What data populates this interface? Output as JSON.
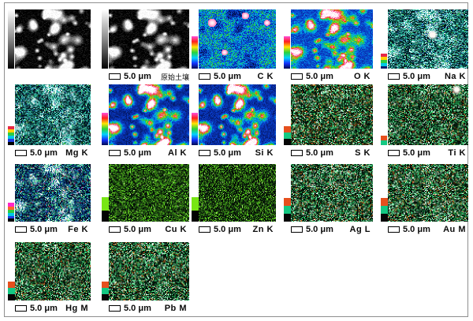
{
  "figure": {
    "background": "#ffffff",
    "border_color": "#8f8f8f",
    "scale_text": "5.0 μm",
    "panels": [
      {
        "label": "",
        "caption_visible": false,
        "mode": "sem",
        "colorbar": "gray"
      },
      {
        "label": "原始土壤",
        "label_cn": true,
        "caption_visible": true,
        "mode": "sem",
        "colorbar": "gray"
      },
      {
        "label": "C K",
        "caption_visible": true,
        "mode": "rainbow",
        "colorbar": "rainbow",
        "a": 0.4,
        "b": -0.22,
        "j": 0.18,
        "hotspots": [
          [
            0.17,
            0.22,
            0.07
          ],
          [
            0.6,
            0.1,
            0.06
          ],
          [
            0.88,
            0.22,
            0.05
          ],
          [
            0.33,
            0.72,
            0.05
          ]
        ]
      },
      {
        "label": "O K",
        "caption_visible": true,
        "mode": "rainbow",
        "colorbar": "rainbow",
        "a": 0.28,
        "b": 0.72,
        "j": 0.1
      },
      {
        "label": "Na K",
        "caption_visible": true,
        "mode": "speckle",
        "palette": "teal",
        "colorbar": "mini_na",
        "a": 0.25,
        "b": 0.45,
        "j": 0.5,
        "spots": [
          [
            0.55,
            0.42,
            0.09
          ]
        ]
      },
      {
        "label": "Mg K",
        "caption_visible": true,
        "mode": "speckle",
        "palette": "teal",
        "colorbar": "mini_mg",
        "a": 0.2,
        "b": 0.5,
        "j": 0.5
      },
      {
        "label": "Al K",
        "caption_visible": true,
        "mode": "rainbow",
        "colorbar": "rainbow",
        "a": 0.16,
        "b": 0.9,
        "j": 0.1
      },
      {
        "label": "Si K",
        "caption_visible": true,
        "mode": "rainbow",
        "colorbar": "rainbow",
        "a": 0.18,
        "b": 0.86,
        "j": 0.1
      },
      {
        "label": "S K",
        "caption_visible": true,
        "mode": "speckle",
        "palette": "green_orange",
        "colorbar": "ogb8",
        "a": 0.1,
        "b": 0.25,
        "j": 0.8,
        "dots": [
          [
            "#c85a14",
            0.05
          ],
          [
            "#7a3c0a",
            0.04
          ],
          [
            "#ffffff",
            0.03
          ],
          [
            "#e6a050",
            0.02
          ]
        ]
      },
      {
        "label": "Ti K",
        "caption_visible": true,
        "mode": "speckle",
        "palette": "green_orange",
        "colorbar": "ti",
        "a": 0.1,
        "b": 0.25,
        "j": 0.8,
        "spots": [
          [
            0.85,
            0.08,
            0.08
          ]
        ],
        "dots": [
          [
            "#c85a14",
            0.04
          ],
          [
            "#ffffff",
            0.03
          ],
          [
            "#e6a050",
            0.02
          ]
        ]
      },
      {
        "label": "Fe K",
        "caption_visible": true,
        "mode": "speckle",
        "palette": "fe",
        "colorbar": "mini_fe",
        "a": 0.12,
        "b": 0.6,
        "j": 0.55,
        "dots": [
          [
            "#ff50b4",
            0.012
          ],
          [
            "#ff7828",
            0.012
          ],
          [
            "#ffffff",
            0.015
          ]
        ]
      },
      {
        "label": "Cu K",
        "caption_visible": true,
        "mode": "sparse",
        "colorbar": "gb",
        "density": 0.48,
        "bright": 0.53
      },
      {
        "label": "Zn K",
        "caption_visible": true,
        "mode": "sparse",
        "colorbar": "gb",
        "density": 0.4,
        "bright": 0.44
      },
      {
        "label": "Ag L",
        "caption_visible": true,
        "mode": "speckle",
        "palette": "green_orange",
        "colorbar": "ogb10",
        "a": 0.12,
        "b": 0.25,
        "j": 0.8,
        "dots": [
          [
            "#c85a14",
            0.05
          ],
          [
            "#ffffff",
            0.035
          ],
          [
            "#e6a050",
            0.015
          ]
        ]
      },
      {
        "label": "Au M",
        "caption_visible": true,
        "mode": "speckle",
        "palette": "green_orange",
        "colorbar": "ogb10",
        "a": 0.12,
        "b": 0.25,
        "j": 0.8,
        "dots": [
          [
            "#c85a14",
            0.06
          ],
          [
            "#ffffff",
            0.05
          ],
          [
            "#e6a050",
            0.02
          ]
        ]
      },
      {
        "label": "Hg M",
        "caption_visible": true,
        "mode": "speckle",
        "palette": "green_orange",
        "colorbar": "ogb8",
        "a": 0.1,
        "b": 0.25,
        "j": 0.8,
        "dots": [
          [
            "#c85a14",
            0.05
          ],
          [
            "#ffffff",
            0.03
          ],
          [
            "#e6a050",
            0.02
          ]
        ]
      },
      {
        "label": "Pb M",
        "caption_visible": true,
        "mode": "speckle",
        "palette": "green_orange",
        "colorbar": "ogb8",
        "a": 0.1,
        "b": 0.25,
        "j": 0.8,
        "dots": [
          [
            "#c85a14",
            0.05
          ],
          [
            "#ffffff",
            0.03
          ],
          [
            "#e6a050",
            0.02
          ]
        ]
      }
    ],
    "palettes": {
      "teal": {
        "colors": [
          "#03141e",
          "#0b3a48",
          "#0f6e64",
          "#1e9e86",
          "#38c8aa",
          "#7adcdc",
          "#c0ecf0",
          "#ffffff"
        ],
        "dots": [
          [
            "#2d64dc",
            0.02
          ],
          [
            "#50c828",
            0.02
          ],
          [
            "#ffffff",
            0.01
          ]
        ]
      },
      "fe": {
        "colors": [
          "#020a28",
          "#0a2864",
          "#1450b4",
          "#1e96b4",
          "#28b478",
          "#50dc8c",
          "#c8f0dc",
          "#ffffff"
        ],
        "dots": []
      },
      "green_orange": {
        "colors": [
          "#05120a",
          "#0c3c1e",
          "#147032",
          "#1fa04b",
          "#2fc86e",
          "#66e09c",
          "#c6f0d8"
        ],
        "dots": []
      }
    },
    "colorbars": {
      "gray": {
        "kind": "gradient_full",
        "width": 8,
        "stops": [
          "#ffffff",
          "#8a8a8a",
          "#000000"
        ]
      },
      "rainbow": {
        "kind": "gradient",
        "width": 8,
        "height": 41,
        "stops": [
          "#ff50dc",
          "#ff1e1e",
          "#ffe400",
          "#28d23c",
          "#00d2ff",
          "#1432ff",
          "#000a50"
        ]
      },
      "mini_na": {
        "kind": "segments",
        "width": 8,
        "segs": [
          [
            "#e82846",
            4
          ],
          [
            "#ffd200",
            4
          ],
          [
            "#2ecc40",
            4
          ],
          [
            "#00c8e6",
            4
          ],
          [
            "#081e6e",
            3
          ]
        ]
      },
      "mini_mg": {
        "kind": "segments",
        "width": 8,
        "segs": [
          [
            "#e82846",
            4
          ],
          [
            "#ffd200",
            4
          ],
          [
            "#2ecc40",
            4
          ],
          [
            "#00c8e6",
            4
          ],
          [
            "#1e3cdc",
            4
          ],
          [
            "#000000",
            4
          ]
        ]
      },
      "mini_fe": {
        "kind": "segments",
        "width": 8,
        "segs": [
          [
            "#ff28c8",
            5
          ],
          [
            "#ff6428",
            4
          ],
          [
            "#2ecc40",
            4
          ],
          [
            "#00c8e6",
            4
          ],
          [
            "#1e3cdc",
            3
          ],
          [
            "#000000",
            4
          ]
        ]
      },
      "ogb8": {
        "kind": "segments",
        "width": 9,
        "segs": [
          [
            "#e6501e",
            8
          ],
          [
            "#14c882",
            8
          ],
          [
            "#060606",
            8
          ]
        ]
      },
      "ogb10": {
        "kind": "segments",
        "width": 9,
        "segs": [
          [
            "#e6501e",
            10
          ],
          [
            "#14c882",
            10
          ],
          [
            "#060606",
            10
          ]
        ]
      },
      "ti": {
        "kind": "segments",
        "width": 8,
        "segs": [
          [
            "#e6501e",
            6
          ],
          [
            "#14c882",
            6
          ]
        ]
      },
      "gb": {
        "kind": "segments",
        "width": 9,
        "segs": [
          [
            "#78e614",
            17
          ],
          [
            "#030303",
            14
          ]
        ]
      }
    }
  }
}
